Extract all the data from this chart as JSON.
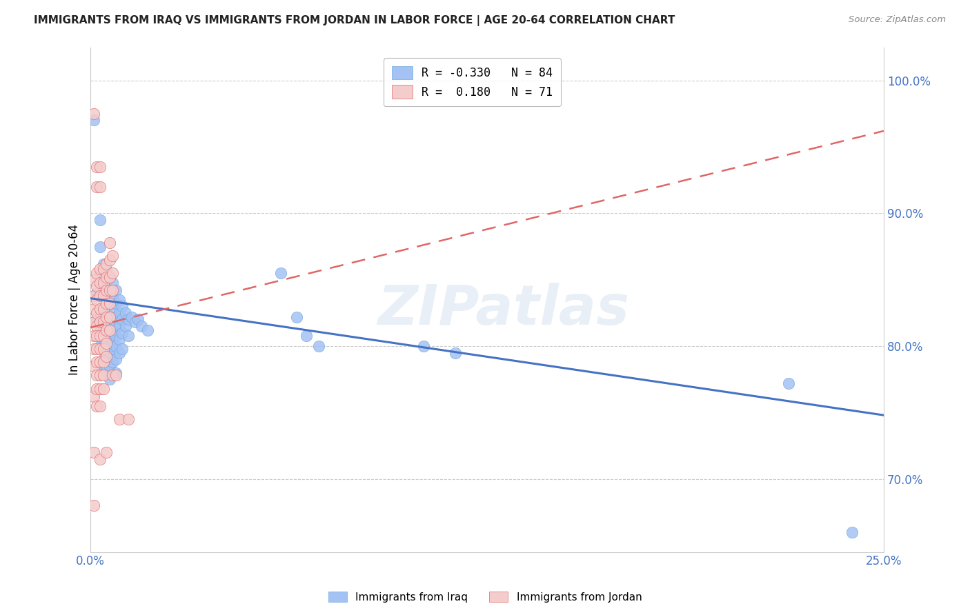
{
  "title": "IMMIGRANTS FROM IRAQ VS IMMIGRANTS FROM JORDAN IN LABOR FORCE | AGE 20-64 CORRELATION CHART",
  "source": "Source: ZipAtlas.com",
  "ylabel": "In Labor Force | Age 20-64",
  "xlim": [
    0.0,
    0.25
  ],
  "ylim": [
    0.645,
    1.025
  ],
  "yticks": [
    0.7,
    0.8,
    0.9,
    1.0
  ],
  "ytick_labels": [
    "70.0%",
    "80.0%",
    "90.0%",
    "100.0%"
  ],
  "xticks": [
    0.0,
    0.05,
    0.1,
    0.15,
    0.2,
    0.25
  ],
  "xtick_labels": [
    "0.0%",
    "",
    "",
    "",
    "",
    "25.0%"
  ],
  "watermark": "ZIPatlas",
  "iraq_color": "#a4c2f4",
  "jordan_color": "#f4cccc",
  "iraq_edge_color": "#6fa8dc",
  "jordan_edge_color": "#e06666",
  "trendline_iraq_color": "#4472c4",
  "trendline_jordan_color": "#cc4125",
  "trendline_jordan_dash_color": "#e06666",
  "background_color": "#ffffff",
  "grid_color": "#cccccc",
  "tick_color": "#4472c4",
  "legend_iraq_label": "R = -0.330   N = 84",
  "legend_jordan_label": "R =  0.180   N = 71",
  "legend_iraq_color": "#a4c2f4",
  "legend_jordan_color": "#f4cccc",
  "iraq_trend_x": [
    0.0,
    0.25
  ],
  "iraq_trend_y": [
    0.836,
    0.748
  ],
  "jordan_trend_x": [
    0.0,
    0.25
  ],
  "jordan_trend_y": [
    0.814,
    0.962
  ],
  "iraq_points": [
    [
      0.001,
      0.97
    ],
    [
      0.002,
      0.84
    ],
    [
      0.002,
      0.82
    ],
    [
      0.003,
      0.895
    ],
    [
      0.003,
      0.875
    ],
    [
      0.003,
      0.855
    ],
    [
      0.003,
      0.84
    ],
    [
      0.003,
      0.825
    ],
    [
      0.003,
      0.82
    ],
    [
      0.003,
      0.812
    ],
    [
      0.003,
      0.808
    ],
    [
      0.003,
      0.8
    ],
    [
      0.004,
      0.862
    ],
    [
      0.004,
      0.85
    ],
    [
      0.004,
      0.838
    ],
    [
      0.004,
      0.825
    ],
    [
      0.004,
      0.818
    ],
    [
      0.004,
      0.812
    ],
    [
      0.004,
      0.805
    ],
    [
      0.004,
      0.798
    ],
    [
      0.004,
      0.79
    ],
    [
      0.004,
      0.782
    ],
    [
      0.005,
      0.858
    ],
    [
      0.005,
      0.848
    ],
    [
      0.005,
      0.838
    ],
    [
      0.005,
      0.828
    ],
    [
      0.005,
      0.82
    ],
    [
      0.005,
      0.812
    ],
    [
      0.005,
      0.805
    ],
    [
      0.005,
      0.798
    ],
    [
      0.005,
      0.79
    ],
    [
      0.005,
      0.782
    ],
    [
      0.006,
      0.852
    ],
    [
      0.006,
      0.842
    ],
    [
      0.006,
      0.832
    ],
    [
      0.006,
      0.822
    ],
    [
      0.006,
      0.815
    ],
    [
      0.006,
      0.808
    ],
    [
      0.006,
      0.8
    ],
    [
      0.006,
      0.792
    ],
    [
      0.006,
      0.785
    ],
    [
      0.006,
      0.775
    ],
    [
      0.007,
      0.848
    ],
    [
      0.007,
      0.838
    ],
    [
      0.007,
      0.828
    ],
    [
      0.007,
      0.82
    ],
    [
      0.007,
      0.812
    ],
    [
      0.007,
      0.805
    ],
    [
      0.007,
      0.798
    ],
    [
      0.007,
      0.788
    ],
    [
      0.008,
      0.842
    ],
    [
      0.008,
      0.832
    ],
    [
      0.008,
      0.822
    ],
    [
      0.008,
      0.815
    ],
    [
      0.008,
      0.808
    ],
    [
      0.008,
      0.8
    ],
    [
      0.008,
      0.79
    ],
    [
      0.008,
      0.78
    ],
    [
      0.009,
      0.835
    ],
    [
      0.009,
      0.825
    ],
    [
      0.009,
      0.815
    ],
    [
      0.009,
      0.805
    ],
    [
      0.009,
      0.795
    ],
    [
      0.01,
      0.83
    ],
    [
      0.01,
      0.82
    ],
    [
      0.01,
      0.81
    ],
    [
      0.01,
      0.798
    ],
    [
      0.011,
      0.825
    ],
    [
      0.011,
      0.815
    ],
    [
      0.012,
      0.82
    ],
    [
      0.012,
      0.808
    ],
    [
      0.013,
      0.822
    ],
    [
      0.014,
      0.818
    ],
    [
      0.015,
      0.82
    ],
    [
      0.016,
      0.815
    ],
    [
      0.018,
      0.812
    ],
    [
      0.06,
      0.855
    ],
    [
      0.065,
      0.822
    ],
    [
      0.068,
      0.808
    ],
    [
      0.072,
      0.8
    ],
    [
      0.105,
      0.8
    ],
    [
      0.115,
      0.795
    ],
    [
      0.22,
      0.772
    ],
    [
      0.24,
      0.66
    ]
  ],
  "jordan_points": [
    [
      0.001,
      0.975
    ],
    [
      0.001,
      0.85
    ],
    [
      0.001,
      0.838
    ],
    [
      0.001,
      0.828
    ],
    [
      0.001,
      0.818
    ],
    [
      0.001,
      0.808
    ],
    [
      0.001,
      0.798
    ],
    [
      0.001,
      0.785
    ],
    [
      0.001,
      0.762
    ],
    [
      0.001,
      0.72
    ],
    [
      0.001,
      0.68
    ],
    [
      0.002,
      0.935
    ],
    [
      0.002,
      0.92
    ],
    [
      0.002,
      0.855
    ],
    [
      0.002,
      0.845
    ],
    [
      0.002,
      0.835
    ],
    [
      0.002,
      0.825
    ],
    [
      0.002,
      0.815
    ],
    [
      0.002,
      0.808
    ],
    [
      0.002,
      0.798
    ],
    [
      0.002,
      0.788
    ],
    [
      0.002,
      0.778
    ],
    [
      0.002,
      0.768
    ],
    [
      0.002,
      0.755
    ],
    [
      0.003,
      0.935
    ],
    [
      0.003,
      0.92
    ],
    [
      0.003,
      0.858
    ],
    [
      0.003,
      0.848
    ],
    [
      0.003,
      0.838
    ],
    [
      0.003,
      0.828
    ],
    [
      0.003,
      0.818
    ],
    [
      0.003,
      0.808
    ],
    [
      0.003,
      0.798
    ],
    [
      0.003,
      0.788
    ],
    [
      0.003,
      0.778
    ],
    [
      0.003,
      0.768
    ],
    [
      0.003,
      0.755
    ],
    [
      0.003,
      0.715
    ],
    [
      0.004,
      0.858
    ],
    [
      0.004,
      0.848
    ],
    [
      0.004,
      0.838
    ],
    [
      0.004,
      0.828
    ],
    [
      0.004,
      0.818
    ],
    [
      0.004,
      0.808
    ],
    [
      0.004,
      0.798
    ],
    [
      0.004,
      0.788
    ],
    [
      0.004,
      0.778
    ],
    [
      0.004,
      0.768
    ],
    [
      0.005,
      0.862
    ],
    [
      0.005,
      0.852
    ],
    [
      0.005,
      0.842
    ],
    [
      0.005,
      0.832
    ],
    [
      0.005,
      0.822
    ],
    [
      0.005,
      0.812
    ],
    [
      0.005,
      0.802
    ],
    [
      0.005,
      0.792
    ],
    [
      0.005,
      0.72
    ],
    [
      0.006,
      0.878
    ],
    [
      0.006,
      0.865
    ],
    [
      0.006,
      0.852
    ],
    [
      0.006,
      0.842
    ],
    [
      0.006,
      0.832
    ],
    [
      0.006,
      0.822
    ],
    [
      0.006,
      0.812
    ],
    [
      0.007,
      0.868
    ],
    [
      0.007,
      0.855
    ],
    [
      0.007,
      0.842
    ],
    [
      0.007,
      0.778
    ],
    [
      0.008,
      0.778
    ],
    [
      0.009,
      0.745
    ],
    [
      0.012,
      0.745
    ]
  ]
}
